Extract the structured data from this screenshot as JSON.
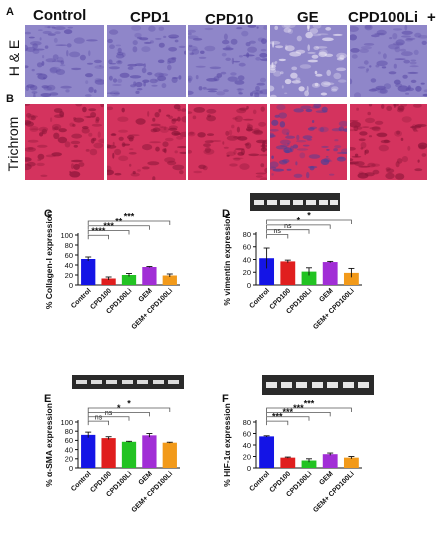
{
  "figure": {
    "panel_letters": [
      "A",
      "B",
      "C",
      "D",
      "E",
      "F"
    ],
    "column_headers": [
      "Control",
      "CPD1",
      "CPD10",
      "GE",
      "CPD100Li",
      "+"
    ],
    "row_labels": [
      "H & E",
      "Trichrom"
    ],
    "colors": {
      "control": "#1414e6",
      "cpd100": "#e01e1e",
      "cpd100li": "#22c322",
      "gem": "#a12ed6",
      "combo": "#f29a1a",
      "he_stain": "#8f86c9",
      "trichrome_stain": "#d4335e"
    }
  },
  "chart_data": [
    {
      "id": "C",
      "type": "bar",
      "ylabel": "% Collagen-I expression",
      "ylim": [
        0,
        100
      ],
      "yticks": [
        0,
        20,
        40,
        60,
        80,
        100
      ],
      "categories": [
        "Control",
        "CPD100",
        "CPD100Li",
        "GEM",
        "GEM+ CPD100Li"
      ],
      "values": [
        52,
        13,
        20,
        36,
        19
      ],
      "errors": [
        4,
        3,
        3,
        1,
        3
      ],
      "significance": [
        {
          "from": 0,
          "to": 1,
          "label": "****"
        },
        {
          "from": 0,
          "to": 2,
          "label": "***"
        },
        {
          "from": 0,
          "to": 3,
          "label": "**"
        },
        {
          "from": 0,
          "to": 4,
          "label": "***"
        }
      ],
      "has_blot": false
    },
    {
      "id": "D",
      "type": "bar",
      "ylabel": "% vimentin expression",
      "ylim": [
        0,
        80
      ],
      "yticks": [
        0,
        20,
        40,
        60,
        80
      ],
      "categories": [
        "Control",
        "CPD100",
        "CPD100Li",
        "GEM",
        "GEM+ CPD100Li"
      ],
      "values": [
        42,
        37,
        21,
        36,
        19
      ],
      "errors": [
        16,
        2,
        6,
        1,
        7
      ],
      "significance": [
        {
          "from": 0,
          "to": 1,
          "label": "ns"
        },
        {
          "from": 0,
          "to": 2,
          "label": "ns"
        },
        {
          "from": 0,
          "to": 3,
          "label": "*"
        },
        {
          "from": 0,
          "to": 4,
          "label": "*"
        }
      ],
      "has_blot": true
    },
    {
      "id": "E",
      "type": "bar",
      "ylabel": "% α-SMA expression",
      "ylim": [
        0,
        100
      ],
      "yticks": [
        0,
        20,
        40,
        60,
        80,
        100
      ],
      "categories": [
        "Control",
        "CPD100",
        "CPD100Li",
        "GEM",
        "GEM+ CPD100Li"
      ],
      "values": [
        72,
        65,
        57,
        71,
        55
      ],
      "errors": [
        6,
        3,
        1,
        4,
        1
      ],
      "significance": [
        {
          "from": 0,
          "to": 1,
          "label": "ns"
        },
        {
          "from": 0,
          "to": 2,
          "label": "ns"
        },
        {
          "from": 0,
          "to": 3,
          "label": "*"
        },
        {
          "from": 0,
          "to": 4,
          "label": "*"
        }
      ],
      "has_blot": true
    },
    {
      "id": "F",
      "type": "bar",
      "ylabel": "% HIF-1α expression",
      "ylim": [
        0,
        80
      ],
      "yticks": [
        0,
        20,
        40,
        60,
        80
      ],
      "categories": [
        "Control",
        "CPD100",
        "CPD100Li",
        "GEM",
        "GEM+ CPD100Li"
      ],
      "values": [
        55,
        18,
        13,
        24,
        18
      ],
      "errors": [
        1,
        1,
        3,
        2,
        2
      ],
      "significance": [
        {
          "from": 0,
          "to": 1,
          "label": "***"
        },
        {
          "from": 0,
          "to": 2,
          "label": "***"
        },
        {
          "from": 0,
          "to": 3,
          "label": "***"
        },
        {
          "from": 0,
          "to": 4,
          "label": "***"
        }
      ],
      "has_blot": true
    }
  ]
}
